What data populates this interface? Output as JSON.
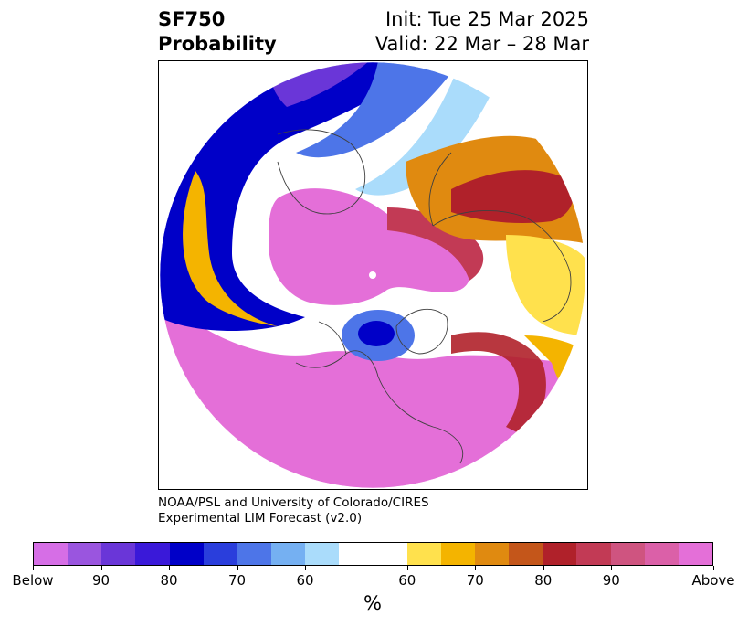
{
  "header": {
    "variable": "SF750",
    "product": "Probability",
    "init": "Init: Tue 25 Mar 2025",
    "valid": "Valid: 22 Mar – 28 Mar"
  },
  "credit": {
    "line1": "NOAA/PSL and University of Colorado/CIRES",
    "line2": "Experimental LIM Forecast (v2.0)"
  },
  "colorbar": {
    "unit": "%",
    "ticks": [
      "Below",
      "90",
      "80",
      "70",
      "60",
      "60",
      "70",
      "80",
      "90",
      "Above"
    ],
    "colors": [
      "#d66ee6",
      "#9a55df",
      "#6a36d8",
      "#3a19d9",
      "#0000c8",
      "#2a3edc",
      "#4d75e8",
      "#75b0f2",
      "#aadcfb",
      "#ffffff",
      "#ffe14d",
      "#f4b400",
      "#e08a10",
      "#c4561a",
      "#b0212a",
      "#c23a55",
      "#cf5480",
      "#db60a8",
      "#e46fd8"
    ],
    "wide_index": 9
  },
  "map": {
    "projection": "north-polar-stereographic",
    "colors": {
      "pink": "#e46fd8",
      "magenta": "#cf5480",
      "crimson": "#c23a55",
      "red": "#b0212a",
      "rust": "#c4561a",
      "orange": "#e08a10",
      "gold": "#f4b400",
      "yellow": "#ffe14d",
      "white": "#ffffff",
      "pale_blue": "#aadcfb",
      "light_blue": "#75b0f2",
      "cornflower": "#4d75e8",
      "royal": "#2a3edc",
      "blue": "#0000c8",
      "violet": "#6a36d8",
      "coast": "#404040"
    }
  }
}
